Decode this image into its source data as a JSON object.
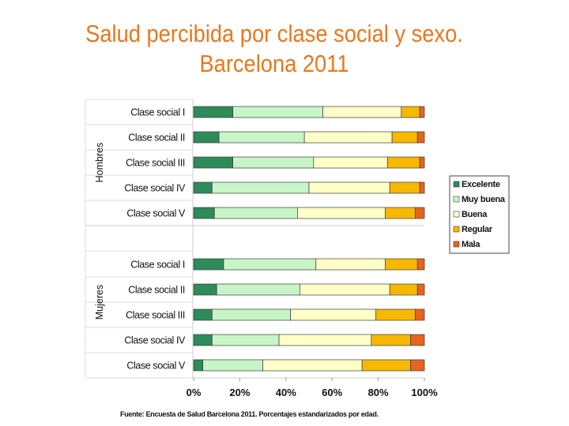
{
  "title_line1": "Salud percibida por clase social y sexo.",
  "title_line2": "Barcelona 2011",
  "source": "Fuente: Encuesta de Salud Barcelona 2011. Porcentajes estandarizados por edad.",
  "colors": {
    "title": "#e8781e",
    "Excelente": "#2e8b5a",
    "Muy buena": "#c8f5c8",
    "Buena": "#ffffc8",
    "Regular": "#f6b800",
    "Mala": "#e8641e"
  },
  "chart_data": {
    "type": "bar",
    "orientation": "horizontal",
    "stacked": "percent",
    "title": "Salud percibida por clase social y sexo. Barcelona 2011",
    "xlim": [
      0,
      100
    ],
    "x_ticks": [
      "0%",
      "20%",
      "40%",
      "60%",
      "80%",
      "100%"
    ],
    "groups": [
      {
        "name": "Hombres",
        "categories": [
          "Clase social I",
          "Clase social II",
          "Clase social III",
          "Clase social IV",
          "Clase social V"
        ]
      },
      {
        "name": "Mujeres",
        "categories": [
          "Clase social I",
          "Clase social II",
          "Clase social III",
          "Clase social IV",
          "Clase social V"
        ]
      }
    ],
    "series": [
      {
        "name": "Excelente",
        "values": [
          17,
          11,
          17,
          8,
          9,
          13,
          10,
          8,
          8,
          4
        ]
      },
      {
        "name": "Muy buena",
        "values": [
          39,
          37,
          35,
          42,
          36,
          40,
          36,
          34,
          29,
          26
        ]
      },
      {
        "name": "Buena",
        "values": [
          34,
          38,
          32,
          35,
          38,
          30,
          39,
          37,
          40,
          43
        ]
      },
      {
        "name": "Regular",
        "values": [
          8,
          11,
          14,
          13,
          13,
          14,
          12,
          17,
          17,
          21
        ]
      },
      {
        "name": "Mala",
        "values": [
          2,
          3,
          2,
          2,
          4,
          3,
          3,
          4,
          6,
          6
        ]
      }
    ],
    "legend": [
      "Excelente",
      "Muy buena",
      "Buena",
      "Regular",
      "Mala"
    ],
    "legend_position": "right"
  }
}
